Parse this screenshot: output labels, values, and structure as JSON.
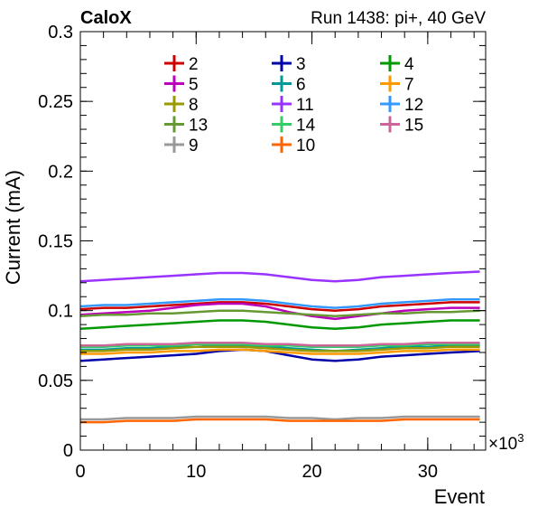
{
  "header": {
    "left_label": "CaloX",
    "right_label": "Run 1438: pi+, 40 GeV"
  },
  "chart_data": {
    "type": "line",
    "title": "",
    "xlabel": "Event",
    "ylabel": "Current (mA)",
    "x_multiplier_label": "×10",
    "x_multiplier_exponent": "3",
    "xlim": [
      0,
      35
    ],
    "ylim": [
      0,
      0.3
    ],
    "x_ticks": [
      0,
      10,
      20,
      30
    ],
    "x_tick_labels": [
      "0",
      "10",
      "20",
      "30"
    ],
    "y_ticks": [
      0,
      0.05,
      0.1,
      0.15,
      0.2,
      0.25,
      0.3
    ],
    "y_tick_labels": [
      "0",
      "0.05",
      "0.1",
      "0.15",
      "0.2",
      "0.25",
      "0.3"
    ],
    "grid": false,
    "legend_placement": "top",
    "x": [
      0,
      2,
      4,
      6,
      8,
      10,
      12,
      14,
      16,
      18,
      20,
      22,
      24,
      26,
      28,
      30,
      32,
      34.5
    ],
    "series": [
      {
        "name": "2",
        "color": "#cc0000",
        "values": [
          0.101,
          0.102,
          0.102,
          0.103,
          0.104,
          0.105,
          0.106,
          0.106,
          0.105,
          0.103,
          0.101,
          0.1,
          0.101,
          0.103,
          0.104,
          0.105,
          0.106,
          0.106
        ]
      },
      {
        "name": "3",
        "color": "#0000aa",
        "values": [
          0.064,
          0.065,
          0.066,
          0.067,
          0.068,
          0.069,
          0.071,
          0.072,
          0.071,
          0.068,
          0.065,
          0.064,
          0.065,
          0.067,
          0.068,
          0.069,
          0.07,
          0.071
        ]
      },
      {
        "name": "4",
        "color": "#009900",
        "values": [
          0.087,
          0.088,
          0.089,
          0.09,
          0.091,
          0.092,
          0.093,
          0.093,
          0.092,
          0.09,
          0.088,
          0.087,
          0.088,
          0.09,
          0.091,
          0.092,
          0.093,
          0.093
        ]
      },
      {
        "name": "5",
        "color": "#bb00bb",
        "values": [
          0.097,
          0.098,
          0.099,
          0.1,
          0.102,
          0.104,
          0.105,
          0.105,
          0.103,
          0.099,
          0.096,
          0.094,
          0.096,
          0.098,
          0.1,
          0.101,
          0.102,
          0.102
        ]
      },
      {
        "name": "6",
        "color": "#009999",
        "values": [
          0.072,
          0.072,
          0.073,
          0.073,
          0.074,
          0.074,
          0.075,
          0.075,
          0.074,
          0.073,
          0.072,
          0.071,
          0.072,
          0.073,
          0.074,
          0.074,
          0.075,
          0.075
        ]
      },
      {
        "name": "7",
        "color": "#ff9900",
        "values": [
          0.069,
          0.069,
          0.07,
          0.07,
          0.071,
          0.071,
          0.072,
          0.072,
          0.071,
          0.07,
          0.069,
          0.069,
          0.069,
          0.07,
          0.071,
          0.071,
          0.072,
          0.072
        ]
      },
      {
        "name": "8",
        "color": "#999900",
        "values": [
          0.071,
          0.071,
          0.072,
          0.072,
          0.073,
          0.074,
          0.074,
          0.074,
          0.073,
          0.072,
          0.071,
          0.071,
          0.071,
          0.072,
          0.073,
          0.073,
          0.074,
          0.074
        ]
      },
      {
        "name": "11",
        "color": "#9933ff",
        "values": [
          0.121,
          0.122,
          0.123,
          0.124,
          0.125,
          0.126,
          0.127,
          0.127,
          0.126,
          0.124,
          0.122,
          0.121,
          0.122,
          0.124,
          0.125,
          0.126,
          0.127,
          0.128
        ]
      },
      {
        "name": "12",
        "color": "#3399ff",
        "values": [
          0.103,
          0.104,
          0.104,
          0.105,
          0.106,
          0.107,
          0.108,
          0.108,
          0.107,
          0.105,
          0.103,
          0.102,
          0.103,
          0.105,
          0.106,
          0.107,
          0.108,
          0.108
        ]
      },
      {
        "name": "13",
        "color": "#669933",
        "values": [
          0.096,
          0.097,
          0.097,
          0.098,
          0.098,
          0.099,
          0.1,
          0.1,
          0.099,
          0.098,
          0.097,
          0.096,
          0.097,
          0.098,
          0.098,
          0.099,
          0.099,
          0.1
        ]
      },
      {
        "name": "14",
        "color": "#33cc66",
        "values": [
          0.074,
          0.074,
          0.075,
          0.075,
          0.075,
          0.076,
          0.076,
          0.076,
          0.075,
          0.075,
          0.074,
          0.074,
          0.074,
          0.075,
          0.075,
          0.076,
          0.076,
          0.076
        ]
      },
      {
        "name": "15",
        "color": "#cc6699",
        "values": [
          0.075,
          0.075,
          0.076,
          0.076,
          0.076,
          0.077,
          0.077,
          0.077,
          0.076,
          0.076,
          0.075,
          0.075,
          0.075,
          0.076,
          0.076,
          0.077,
          0.077,
          0.077
        ]
      },
      {
        "name": "9",
        "color": "#999999",
        "values": [
          0.022,
          0.022,
          0.023,
          0.023,
          0.023,
          0.024,
          0.024,
          0.024,
          0.024,
          0.023,
          0.023,
          0.022,
          0.023,
          0.023,
          0.024,
          0.024,
          0.024,
          0.024
        ]
      },
      {
        "name": "10",
        "color": "#ff6600",
        "values": [
          0.02,
          0.02,
          0.021,
          0.021,
          0.021,
          0.022,
          0.022,
          0.022,
          0.022,
          0.021,
          0.021,
          0.021,
          0.021,
          0.021,
          0.022,
          0.022,
          0.022,
          0.022
        ]
      }
    ],
    "legend_order": [
      "2",
      "3",
      "4",
      "5",
      "6",
      "7",
      "8",
      "11",
      "12",
      "13",
      "14",
      "15",
      "9",
      "10"
    ]
  }
}
